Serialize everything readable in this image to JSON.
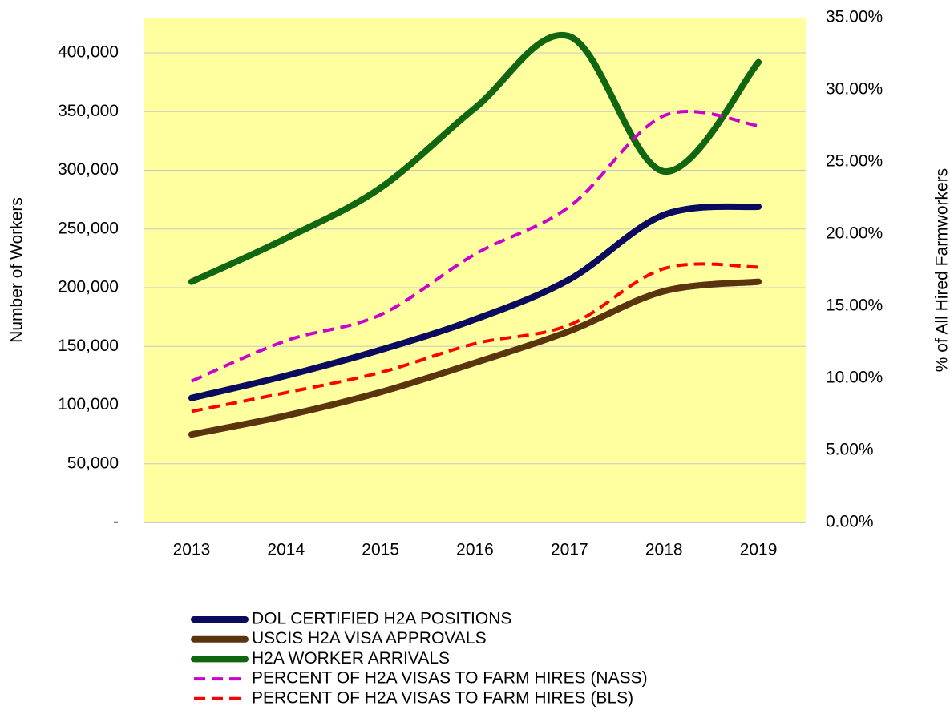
{
  "chart_data": {
    "type": "line",
    "categories": [
      "2013",
      "2014",
      "2015",
      "2016",
      "2017",
      "2018",
      "2019"
    ],
    "y_label": "Number of Workers",
    "y2_label": "% of All Hired Farmworkers",
    "ylim": [
      0,
      430000
    ],
    "yticks": [
      {
        "value": 0,
        "label": "-"
      },
      {
        "value": 50000,
        "label": "50,000"
      },
      {
        "value": 100000,
        "label": "100,000"
      },
      {
        "value": 150000,
        "label": "150,000"
      },
      {
        "value": 200000,
        "label": "200,000"
      },
      {
        "value": 250000,
        "label": "250,000"
      },
      {
        "value": 300000,
        "label": "300,000"
      },
      {
        "value": 350000,
        "label": "350,000"
      },
      {
        "value": 400000,
        "label": "400,000"
      }
    ],
    "y2lim": [
      0,
      35
    ],
    "y2ticks": [
      {
        "value": 0,
        "label": "0.00%"
      },
      {
        "value": 5,
        "label": "5.00%"
      },
      {
        "value": 10,
        "label": "10.00%"
      },
      {
        "value": 15,
        "label": "15.00%"
      },
      {
        "value": 20,
        "label": "20.00%"
      },
      {
        "value": 25,
        "label": "25.00%"
      },
      {
        "value": 30,
        "label": "30.00%"
      },
      {
        "value": 35,
        "label": "35.00%"
      }
    ],
    "grid": true,
    "background": "#ffff9f",
    "legend": "bottom",
    "series": [
      {
        "name": "DOL CERTIFIED H2A POSITIONS",
        "color": "#0a0a5e",
        "linestyle": "solid",
        "values": [
          106000,
          125000,
          147000,
          173000,
          207000,
          262000,
          269000
        ]
      },
      {
        "name": "USCIS H2A VISA APPROVALS",
        "color": "#5a330f",
        "linestyle": "solid",
        "values": [
          75000,
          91000,
          111000,
          136000,
          163000,
          197000,
          205000
        ]
      },
      {
        "name": "H2A WORKER ARRIVALS",
        "color": "#116611",
        "linestyle": "solid",
        "values": [
          205000,
          242000,
          285000,
          353000,
          414000,
          299000,
          392000
        ]
      },
      {
        "name": "PERCENT OF H2A VISAS TO FARM HIRES (NASS)",
        "color": "#cc00cc",
        "linestyle": "dashed",
        "axis": "y2",
        "values": [
          9.8,
          12.6,
          14.4,
          18.6,
          21.9,
          28.2,
          27.5
        ]
      },
      {
        "name": "PERCENT OF H2A VISAS TO FARM HIRES (BLS)",
        "color": "#ff0000",
        "linestyle": "dashed",
        "axis": "y2",
        "values": [
          7.7,
          9.0,
          10.4,
          12.4,
          13.7,
          17.6,
          17.7
        ]
      }
    ]
  }
}
